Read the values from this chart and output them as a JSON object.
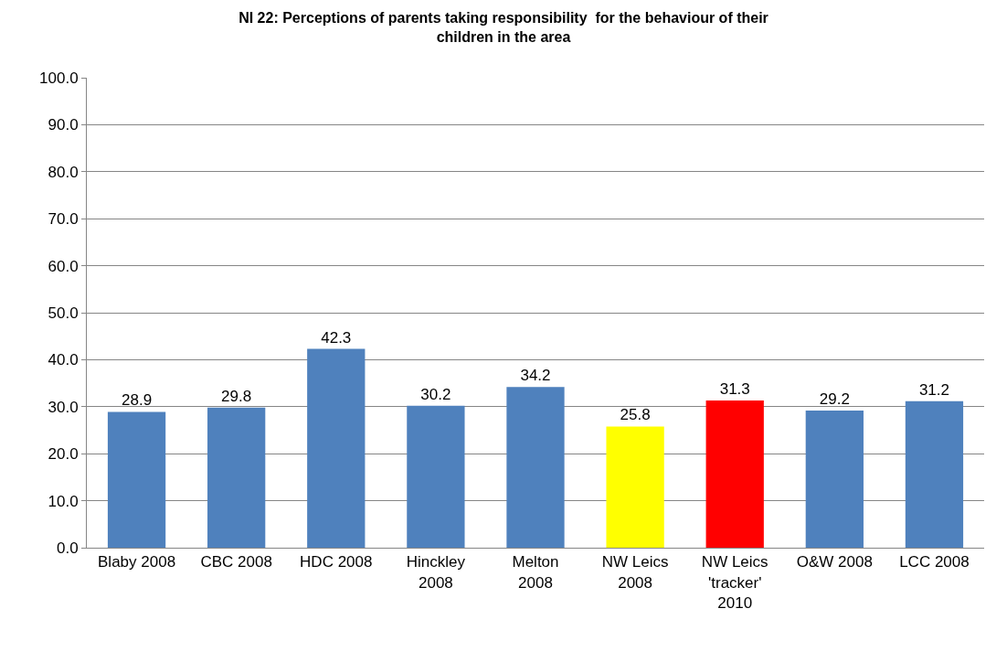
{
  "chart_data": {
    "type": "bar",
    "title": "NI 22: Perceptions of parents taking responsibility  for the behaviour of their children in the area",
    "categories": [
      "Blaby 2008",
      "CBC 2008",
      "HDC 2008",
      "Hinckley 2008",
      "Melton 2008",
      "NW Leics 2008",
      "NW Leics 'tracker' 2010",
      "O&W 2008",
      "LCC 2008"
    ],
    "values": [
      28.9,
      29.8,
      42.3,
      30.2,
      34.2,
      25.8,
      31.3,
      29.2,
      31.2
    ],
    "colors": [
      "#4f81bd",
      "#4f81bd",
      "#4f81bd",
      "#4f81bd",
      "#4f81bd",
      "#ffff00",
      "#ff0000",
      "#4f81bd",
      "#4f81bd"
    ],
    "ylim": [
      0,
      100
    ],
    "yticks": [
      {
        "value": 0,
        "label": "0.0"
      },
      {
        "value": 10,
        "label": "10.0"
      },
      {
        "value": 20,
        "label": "20.0"
      },
      {
        "value": 30,
        "label": "30.0"
      },
      {
        "value": 40,
        "label": "40.0"
      },
      {
        "value": 50,
        "label": "50.0"
      },
      {
        "value": 60,
        "label": "60.0"
      },
      {
        "value": 70,
        "label": "70.0"
      },
      {
        "value": 80,
        "label": "80.0"
      },
      {
        "value": 90,
        "label": "90.0"
      },
      {
        "value": 100,
        "label": "100.0"
      }
    ],
    "grid": "y",
    "data_labels": true
  }
}
